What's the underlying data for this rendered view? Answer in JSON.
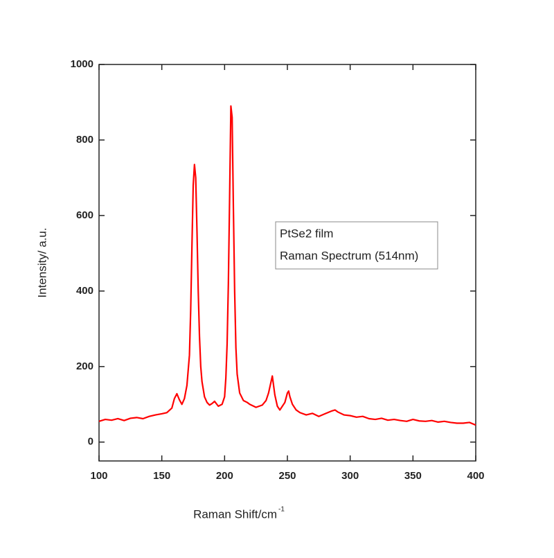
{
  "chart_data": {
    "type": "line",
    "xlabel": "Raman Shift/cm",
    "xlabel_superscript": "-1",
    "ylabel": "Intensity/ a.u.",
    "annotations": [
      "PtSe2 film",
      "Raman Spectrum (514nm)"
    ],
    "xlim": [
      100,
      400
    ],
    "xticks": [
      100,
      150,
      200,
      250,
      300,
      350,
      400
    ],
    "ylim": [
      -50,
      1000
    ],
    "yticks": [
      0,
      200,
      400,
      600,
      800,
      1000
    ],
    "series": [
      {
        "color": "#ff0000",
        "x": [
          100,
          105,
          110,
          115,
          120,
          125,
          130,
          135,
          140,
          145,
          150,
          154,
          158,
          160,
          162,
          164,
          166,
          168,
          170,
          172,
          173,
          174,
          175,
          176,
          177,
          178,
          179,
          180,
          181,
          182,
          184,
          186,
          188,
          190,
          192,
          195,
          198,
          200,
          201,
          202,
          203,
          204,
          205,
          206,
          207,
          208,
          209,
          210,
          212,
          215,
          218,
          220,
          225,
          230,
          233,
          235,
          237,
          238,
          239,
          240,
          242,
          244,
          246,
          248,
          250,
          251,
          252,
          254,
          257,
          260,
          265,
          270,
          275,
          280,
          285,
          288,
          290,
          295,
          300,
          305,
          310,
          315,
          320,
          325,
          330,
          335,
          340,
          345,
          350,
          355,
          360,
          365,
          370,
          375,
          380,
          385,
          390,
          395,
          400
        ],
        "values": [
          55,
          60,
          58,
          62,
          57,
          63,
          65,
          62,
          68,
          72,
          75,
          78,
          90,
          115,
          128,
          112,
          100,
          115,
          150,
          230,
          350,
          520,
          680,
          735,
          700,
          560,
          400,
          280,
          200,
          160,
          120,
          105,
          98,
          102,
          108,
          95,
          100,
          120,
          170,
          260,
          420,
          650,
          890,
          860,
          620,
          400,
          250,
          180,
          130,
          110,
          105,
          100,
          92,
          98,
          110,
          130,
          160,
          175,
          150,
          125,
          95,
          85,
          95,
          105,
          130,
          135,
          120,
          100,
          85,
          78,
          72,
          76,
          68,
          75,
          82,
          85,
          80,
          72,
          70,
          66,
          68,
          62,
          60,
          63,
          58,
          60,
          57,
          55,
          60,
          56,
          55,
          57,
          53,
          55,
          52,
          50,
          50,
          52,
          45
        ]
      }
    ]
  }
}
